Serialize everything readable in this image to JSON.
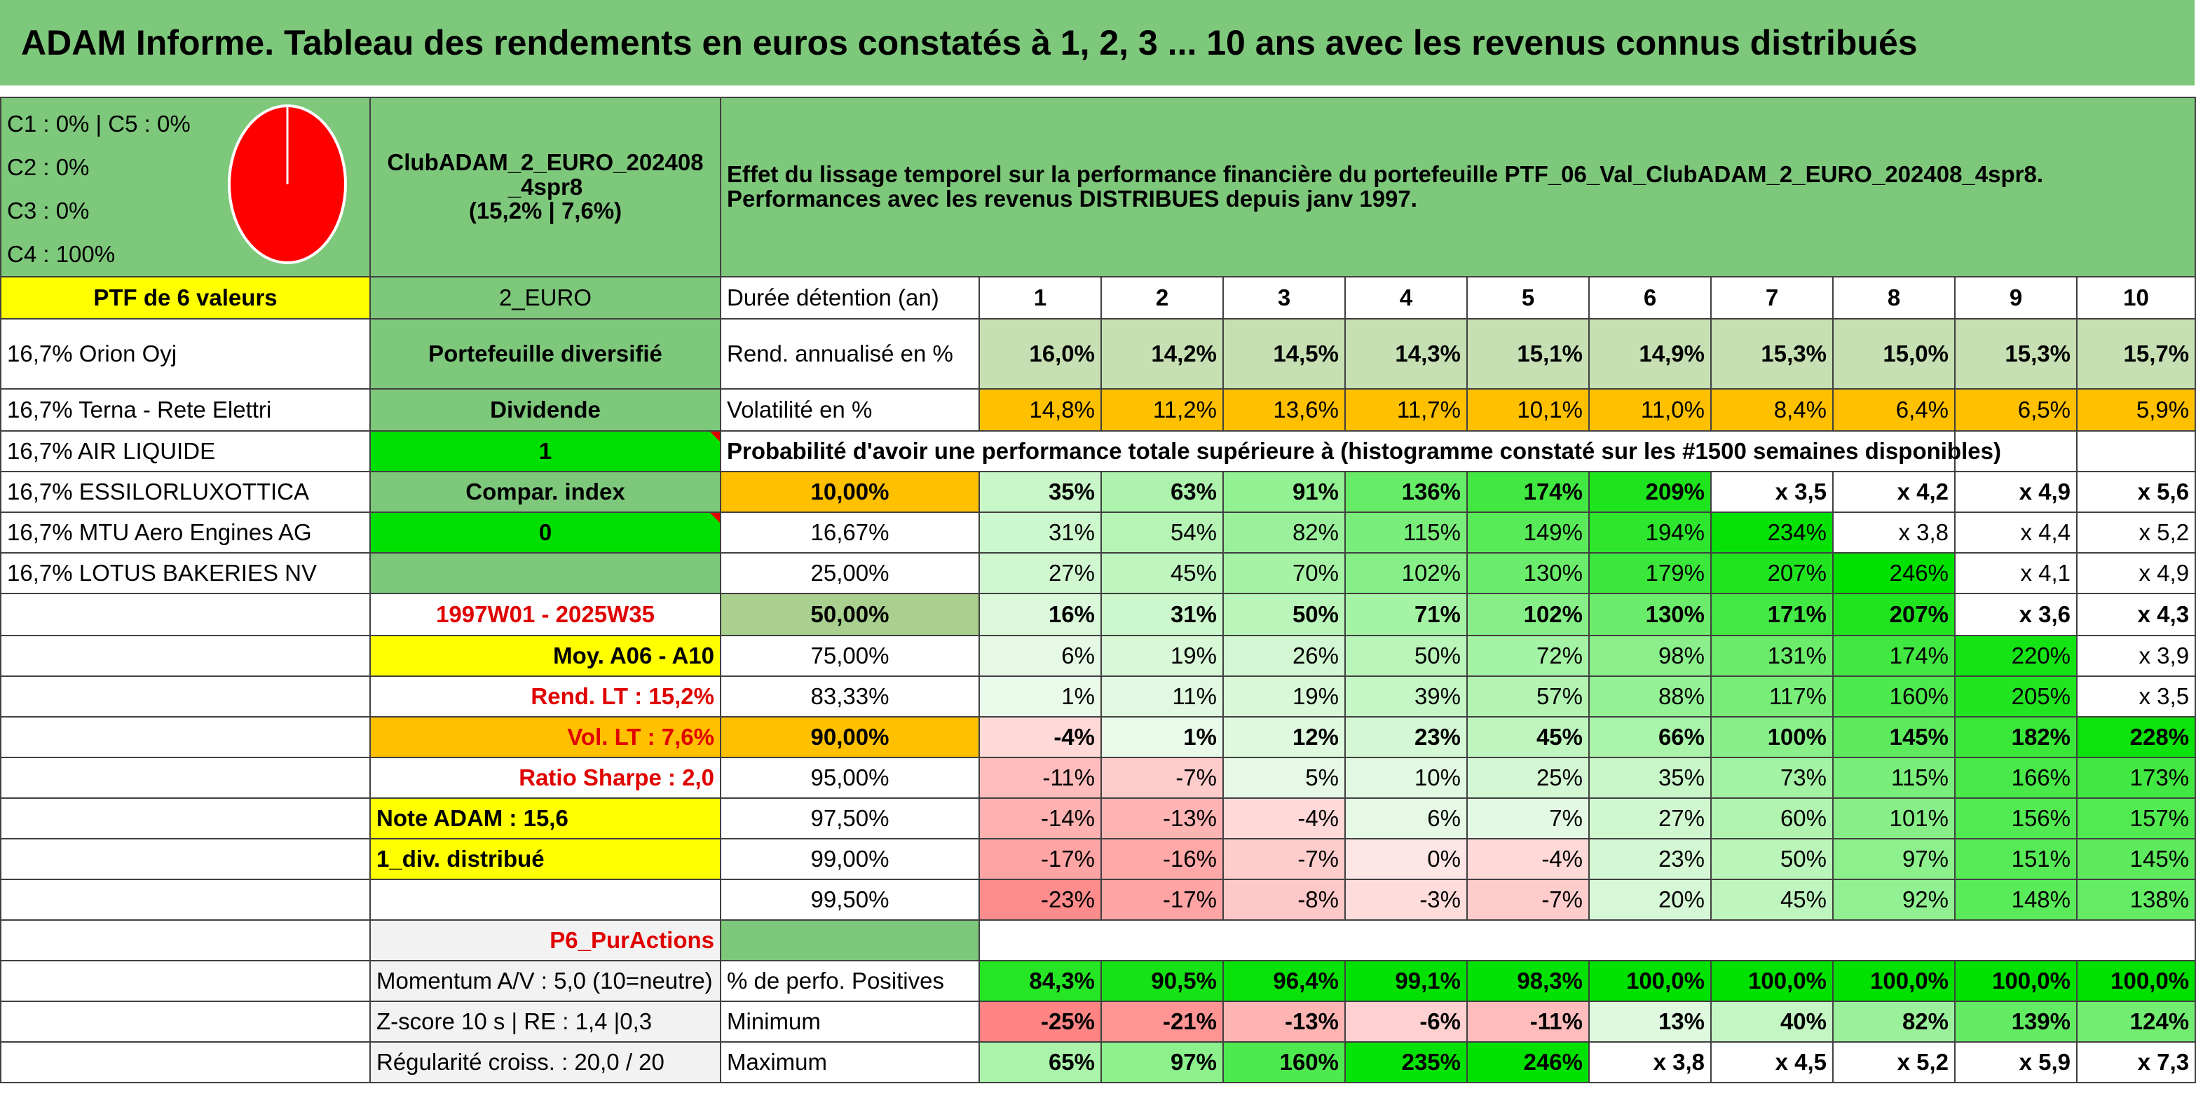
{
  "title": "ADAM Informe. Tableau des rendements en euros constatés à 1, 2, 3 ... 10 ans avec les revenus connus distribués",
  "allocation": [
    "C1 : 0% | C5 : 0%",
    "C2 : 0%",
    "C3 : 0%",
    "C4 : 100%"
  ],
  "pie": {
    "c4_fraction": 1.0,
    "color": "#ff0000"
  },
  "club": {
    "name_line1": "ClubADAM_2_EURO_202408",
    "name_line2": "_4spr8",
    "stats": "(15,2% | 7,6%)"
  },
  "effet": {
    "line1": "Effet du lissage temporel sur la performance financière du portefeuille PTF_06_Val_ClubADAM_2_EURO_202408_4spr8.",
    "line2": "Performances avec les revenus DISTRIBUES depuis janv 1997."
  },
  "holdings": {
    "header": "PTF de 6 valeurs",
    "items": [
      "16,7% Orion Oyj",
      "16,7% Terna - Rete Elettri",
      "16,7% AIR LIQUIDE",
      "16,7% ESSILORLUXOTTICA",
      "16,7% MTU Aero Engines AG",
      "16,7% LOTUS BAKERIES NV"
    ]
  },
  "meta": {
    "currency": "2_EURO",
    "type": "Portefeuille diversifié",
    "dividende_label": "Dividende",
    "dividende_value": "1",
    "compar_label": "Compar. index",
    "compar_value": "0",
    "period": "1997W01 - 2025W35",
    "moy": "Moy. A06 - A10",
    "rend_lt": "Rend. LT : 15,2%",
    "vol_lt": "Vol. LT : 7,6%",
    "sharpe": "Ratio Sharpe : 2,0",
    "note": "Note ADAM : 15,6",
    "div": "1_div. distribué",
    "category": "P6_PurActions",
    "momentum": "Momentum A/V : 5,0 (10=neutre)",
    "zscore": "Z-score 10 s | RE : 1,4 |0,3",
    "regularite": "Régularité croiss. : 20,0 / 20"
  },
  "table": {
    "duration_label": "Durée détention (an)",
    "years": [
      "1",
      "2",
      "3",
      "4",
      "5",
      "6",
      "7",
      "8",
      "9",
      "10"
    ],
    "rend_label": "Rend. annualisé en %",
    "rend": [
      "16,0%",
      "14,2%",
      "14,5%",
      "14,3%",
      "15,1%",
      "14,9%",
      "15,3%",
      "15,0%",
      "15,3%",
      "15,7%"
    ],
    "vol_label": "Volatilité en %",
    "vol": [
      "14,8%",
      "11,2%",
      "13,6%",
      "11,7%",
      "10,1%",
      "11,0%",
      "8,4%",
      "6,4%",
      "6,5%",
      "5,9%"
    ],
    "proba_label": "Probabilité d'avoir une performance totale supérieure à (histogramme constaté sur les #1500 semaines disponibles)",
    "proba": [
      {
        "p": "10,00%",
        "v": [
          "35%",
          "63%",
          "91%",
          "136%",
          "174%",
          "209%",
          "x 3,5",
          "x 4,2",
          "x 4,9",
          "x 5,6"
        ]
      },
      {
        "p": "16,67%",
        "v": [
          "31%",
          "54%",
          "82%",
          "115%",
          "149%",
          "194%",
          "234%",
          "x 3,8",
          "x 4,4",
          "x 5,2"
        ]
      },
      {
        "p": "25,00%",
        "v": [
          "27%",
          "45%",
          "70%",
          "102%",
          "130%",
          "179%",
          "207%",
          "246%",
          "x 4,1",
          "x 4,9"
        ]
      },
      {
        "p": "50,00%",
        "v": [
          "16%",
          "31%",
          "50%",
          "71%",
          "102%",
          "130%",
          "171%",
          "207%",
          "x 3,6",
          "x 4,3"
        ]
      },
      {
        "p": "75,00%",
        "v": [
          "6%",
          "19%",
          "26%",
          "50%",
          "72%",
          "98%",
          "131%",
          "174%",
          "220%",
          "x 3,9"
        ]
      },
      {
        "p": "83,33%",
        "v": [
          "1%",
          "11%",
          "19%",
          "39%",
          "57%",
          "88%",
          "117%",
          "160%",
          "205%",
          "x 3,5"
        ]
      },
      {
        "p": "90,00%",
        "v": [
          "-4%",
          "1%",
          "12%",
          "23%",
          "45%",
          "66%",
          "100%",
          "145%",
          "182%",
          "228%"
        ]
      },
      {
        "p": "95,00%",
        "v": [
          "-11%",
          "-7%",
          "5%",
          "10%",
          "25%",
          "35%",
          "73%",
          "115%",
          "166%",
          "173%"
        ]
      },
      {
        "p": "97,50%",
        "v": [
          "-14%",
          "-13%",
          "-4%",
          "6%",
          "7%",
          "27%",
          "60%",
          "101%",
          "156%",
          "157%"
        ]
      },
      {
        "p": "99,00%",
        "v": [
          "-17%",
          "-16%",
          "-7%",
          "0%",
          "-4%",
          "23%",
          "50%",
          "97%",
          "151%",
          "145%"
        ]
      },
      {
        "p": "99,50%",
        "v": [
          "-23%",
          "-17%",
          "-8%",
          "-3%",
          "-7%",
          "20%",
          "45%",
          "92%",
          "148%",
          "138%"
        ]
      }
    ],
    "positive_label": "% de perfo. Positives",
    "positive": [
      "84,3%",
      "90,5%",
      "96,4%",
      "99,1%",
      "98,3%",
      "100,0%",
      "100,0%",
      "100,0%",
      "100,0%",
      "100,0%"
    ],
    "min_label": "Minimum",
    "min": [
      "-25%",
      "-21%",
      "-13%",
      "-6%",
      "-11%",
      "13%",
      "40%",
      "82%",
      "139%",
      "124%"
    ],
    "max_label": "Maximum",
    "max": [
      "65%",
      "97%",
      "160%",
      "235%",
      "246%",
      "x 3,8",
      "x 4,5",
      "x 5,2",
      "x 5,9",
      "x 7,3"
    ]
  }
}
